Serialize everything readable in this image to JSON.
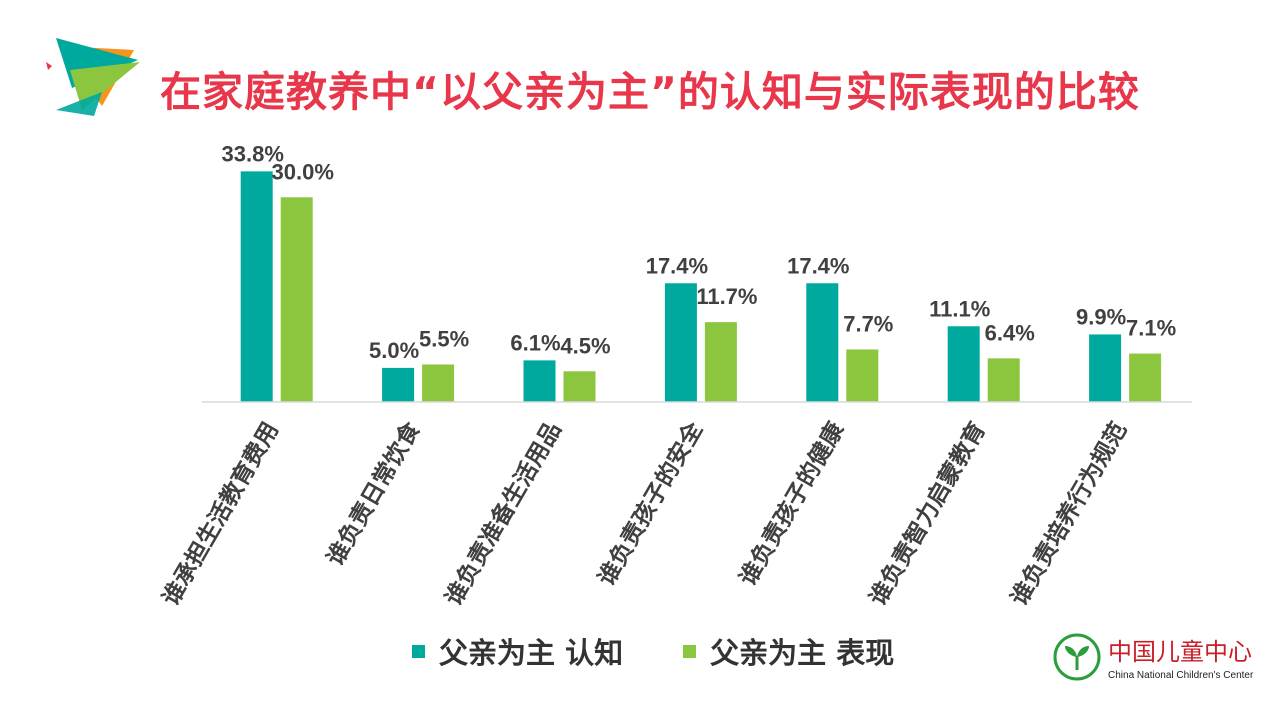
{
  "slide": {
    "title": "在家庭教养中“以父亲为主”的认知与实际表现的比较"
  },
  "colors": {
    "title": "#e8364a",
    "series_a": "#00a99d",
    "series_b": "#8cc63f",
    "brand_red": "#c81e2a",
    "brand_green": "#2a9d3c"
  },
  "legend": {
    "series_a_label": "父亲为主 认知",
    "series_b_label": "父亲为主 表现"
  },
  "brand": {
    "name_cn": "中国儿童中心",
    "name_en": "China National Children's Center",
    "emblem_icon": "sprout-logo-icon"
  },
  "chart_data": {
    "type": "bar",
    "categories": [
      "谁承担生活教育费用",
      "谁负责日常饮食",
      "谁负责准备生活用品",
      "谁负责孩子的安全",
      "谁负责孩子的健康",
      "谁负责智力启蒙教育",
      "谁负责培养行为规范"
    ],
    "series": [
      {
        "name": "父亲为主 认知",
        "values": [
          33.8,
          5.0,
          6.1,
          17.4,
          17.4,
          11.1,
          9.9
        ],
        "labels": [
          "33.8%",
          "5.0%",
          "6.1%",
          "17.4%",
          "17.4%",
          "11.1%",
          "9.9%"
        ]
      },
      {
        "name": "父亲为主 表现",
        "values": [
          30.0,
          5.5,
          4.5,
          11.7,
          7.7,
          6.4,
          7.1
        ],
        "labels": [
          "30.0%",
          "5.5%",
          "4.5%",
          "11.7%",
          "7.7%",
          "6.4%",
          "7.1%"
        ]
      }
    ],
    "ylim": [
      0,
      34
    ],
    "grid": false,
    "legend_position": "bottom"
  }
}
